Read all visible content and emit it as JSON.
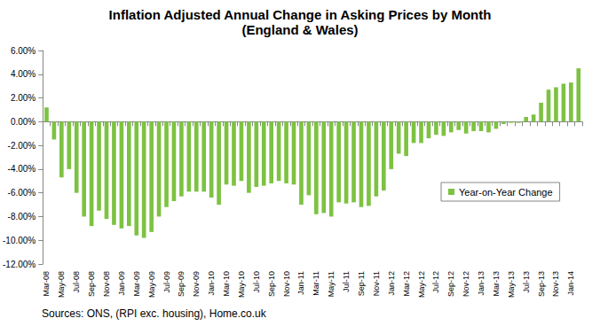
{
  "chart_data": {
    "type": "bar",
    "title": "Inflation Adjusted Annual Change in Asking Prices by Month",
    "subtitle": "(England & Wales)",
    "source": "Sources: ONS, (RPI exc. housing), Home.co.uk",
    "categories": [
      "Mar-08",
      null,
      "May-08",
      null,
      "Jul-08",
      null,
      "Sep-08",
      null,
      "Nov-08",
      null,
      "Jan-09",
      null,
      "Mar-09",
      null,
      "May-09",
      null,
      "Jul-09",
      null,
      "Sep-09",
      null,
      "Nov-09",
      null,
      "Jan-10",
      null,
      "Mar-10",
      null,
      "May-10",
      null,
      "Jul-10",
      null,
      "Sep-10",
      null,
      "Nov-10",
      null,
      "Jan-11",
      null,
      "Mar-11",
      null,
      "May-11",
      null,
      "Jul-11",
      null,
      "Sep-11",
      null,
      "Nov-11",
      null,
      "Jan-12",
      null,
      "Mar-12",
      null,
      "May-12",
      null,
      "Jul-12",
      null,
      "Sep-12",
      null,
      "Nov-12",
      null,
      "Jan-13",
      null,
      "Mar-13",
      null,
      "May-13",
      null,
      "Jul-13",
      null,
      "Sep-13",
      null,
      "Nov-13",
      null,
      "Jan-14",
      null
    ],
    "series": [
      {
        "name": "Year-on-Year Change",
        "color": "#7dc242",
        "values": [
          1.2,
          -1.5,
          -4.7,
          -4.0,
          -6.0,
          -8.0,
          -8.8,
          -7.5,
          -8.2,
          -8.7,
          -9.0,
          -8.8,
          -9.6,
          -9.8,
          -9.3,
          -8.0,
          -7.2,
          -6.7,
          -6.3,
          -5.9,
          -5.9,
          -5.9,
          -6.4,
          -7.0,
          -5.3,
          -5.4,
          -5.0,
          -6.0,
          -5.5,
          -5.4,
          -5.2,
          -5.0,
          -5.2,
          -5.3,
          -7.0,
          -6.2,
          -7.8,
          -7.7,
          -8.0,
          -6.8,
          -6.9,
          -6.8,
          -7.2,
          -7.1,
          -6.3,
          -5.8,
          -4.0,
          -2.7,
          -2.9,
          -1.8,
          -1.8,
          -1.4,
          -1.1,
          -1.2,
          -0.9,
          -0.7,
          -1.0,
          -0.8,
          -0.8,
          -0.9,
          -0.6,
          -0.2,
          -0.1,
          -0.1,
          0.4,
          0.6,
          1.6,
          2.7,
          2.9,
          3.2,
          3.3,
          4.5
        ]
      }
    ],
    "ylim": [
      -12,
      6
    ],
    "yticks": [
      {
        "value": -12,
        "label": "-12.00%"
      },
      {
        "value": -10,
        "label": "-10.00%"
      },
      {
        "value": -8,
        "label": "-8.00%"
      },
      {
        "value": -6,
        "label": "-6.00%"
      },
      {
        "value": -4,
        "label": "-4.00%"
      },
      {
        "value": -2,
        "label": "-2.00%"
      },
      {
        "value": 0,
        "label": "0.00%"
      },
      {
        "value": 2,
        "label": "2.00%"
      },
      {
        "value": 4,
        "label": "4.00%"
      },
      {
        "value": 6,
        "label": "6.00%"
      }
    ],
    "grid": false,
    "legend": "right"
  }
}
